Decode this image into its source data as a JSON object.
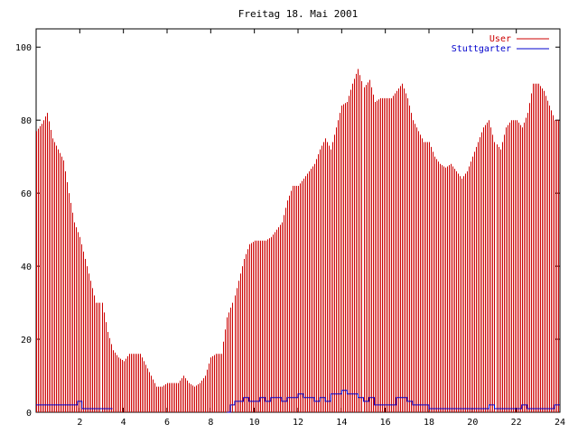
{
  "chart_data": {
    "type": "bar",
    "title": "Freitag 18. Mai 2001",
    "xlabel": "",
    "ylabel": "",
    "xlim": [
      0,
      24
    ],
    "ylim": [
      0,
      105
    ],
    "x_ticks": [
      2,
      4,
      6,
      8,
      10,
      12,
      14,
      16,
      18,
      20,
      22,
      24
    ],
    "y_ticks": [
      0,
      20,
      40,
      60,
      80,
      100
    ],
    "legend_position": "top-right",
    "series": [
      {
        "name": "User",
        "style": "impulses",
        "color": "#cc0000",
        "points": [
          [
            0.0,
            77
          ],
          [
            0.25,
            79
          ],
          [
            0.5,
            82
          ],
          [
            0.75,
            75
          ],
          [
            1.0,
            72
          ],
          [
            1.25,
            69
          ],
          [
            1.5,
            60
          ],
          [
            1.75,
            52
          ],
          [
            2.0,
            48
          ],
          [
            2.25,
            42
          ],
          [
            2.5,
            36
          ],
          [
            2.75,
            30
          ],
          [
            3.0,
            30
          ],
          [
            3.25,
            22
          ],
          [
            3.5,
            17
          ],
          [
            3.75,
            15
          ],
          [
            4.0,
            14
          ],
          [
            4.25,
            16
          ],
          [
            4.5,
            16
          ],
          [
            4.75,
            16
          ],
          [
            5.0,
            13
          ],
          [
            5.25,
            10
          ],
          [
            5.5,
            7
          ],
          [
            5.75,
            7
          ],
          [
            6.0,
            8
          ],
          [
            6.25,
            8
          ],
          [
            6.5,
            8
          ],
          [
            6.75,
            10
          ],
          [
            7.0,
            8
          ],
          [
            7.25,
            7
          ],
          [
            7.5,
            8
          ],
          [
            7.75,
            10
          ],
          [
            8.0,
            15
          ],
          [
            8.25,
            16
          ],
          [
            8.5,
            16
          ],
          [
            8.75,
            26
          ],
          [
            9.0,
            30
          ],
          [
            9.25,
            36
          ],
          [
            9.5,
            42
          ],
          [
            9.75,
            46
          ],
          [
            10.0,
            47
          ],
          [
            10.25,
            47
          ],
          [
            10.5,
            47
          ],
          [
            10.75,
            48
          ],
          [
            11.0,
            50
          ],
          [
            11.25,
            52
          ],
          [
            11.5,
            58
          ],
          [
            11.75,
            62
          ],
          [
            12.0,
            62
          ],
          [
            12.25,
            64
          ],
          [
            12.5,
            66
          ],
          [
            12.75,
            68
          ],
          [
            13.0,
            72
          ],
          [
            13.25,
            75
          ],
          [
            13.5,
            72
          ],
          [
            13.75,
            78
          ],
          [
            14.0,
            84
          ],
          [
            14.25,
            85
          ],
          [
            14.5,
            90
          ],
          [
            14.75,
            94
          ],
          [
            15.0,
            89
          ],
          [
            15.25,
            91
          ],
          [
            15.5,
            85
          ],
          [
            15.75,
            86
          ],
          [
            16.0,
            86
          ],
          [
            16.25,
            86
          ],
          [
            16.5,
            88
          ],
          [
            16.75,
            90
          ],
          [
            17.0,
            86
          ],
          [
            17.25,
            80
          ],
          [
            17.5,
            77
          ],
          [
            17.75,
            74
          ],
          [
            18.0,
            74
          ],
          [
            18.25,
            70
          ],
          [
            18.5,
            68
          ],
          [
            18.75,
            67
          ],
          [
            19.0,
            68
          ],
          [
            19.25,
            66
          ],
          [
            19.5,
            64
          ],
          [
            19.75,
            66
          ],
          [
            20.0,
            70
          ],
          [
            20.25,
            74
          ],
          [
            20.5,
            78
          ],
          [
            20.75,
            80
          ],
          [
            21.0,
            74
          ],
          [
            21.25,
            72
          ],
          [
            21.5,
            78
          ],
          [
            21.75,
            80
          ],
          [
            22.0,
            80
          ],
          [
            22.25,
            78
          ],
          [
            22.5,
            82
          ],
          [
            22.75,
            90
          ],
          [
            23.0,
            90
          ],
          [
            23.25,
            88
          ],
          [
            23.5,
            84
          ],
          [
            23.75,
            80
          ]
        ]
      },
      {
        "name": "Stuttgarter",
        "style": "steps",
        "color": "#0000cc",
        "points": [
          [
            0.0,
            2
          ],
          [
            1.75,
            2
          ],
          [
            1.9,
            3
          ],
          [
            2.1,
            1
          ],
          [
            3.5,
            1
          ],
          [
            3.5,
            null
          ],
          [
            8.75,
            null
          ],
          [
            8.75,
            0
          ],
          [
            8.9,
            2
          ],
          [
            9.1,
            3
          ],
          [
            9.5,
            4
          ],
          [
            9.75,
            3
          ],
          [
            10.0,
            3
          ],
          [
            10.25,
            4
          ],
          [
            10.5,
            3
          ],
          [
            10.75,
            4
          ],
          [
            11.0,
            4
          ],
          [
            11.25,
            3
          ],
          [
            11.5,
            4
          ],
          [
            11.75,
            4
          ],
          [
            12.0,
            5
          ],
          [
            12.25,
            4
          ],
          [
            12.5,
            4
          ],
          [
            12.75,
            3
          ],
          [
            13.0,
            4
          ],
          [
            13.25,
            3
          ],
          [
            13.5,
            5
          ],
          [
            13.75,
            5
          ],
          [
            14.0,
            6
          ],
          [
            14.25,
            5
          ],
          [
            14.5,
            5
          ],
          [
            14.75,
            4
          ],
          [
            15.0,
            3
          ],
          [
            15.25,
            4
          ],
          [
            15.5,
            2
          ],
          [
            15.75,
            2
          ],
          [
            16.0,
            2
          ],
          [
            16.25,
            2
          ],
          [
            16.5,
            4
          ],
          [
            16.75,
            4
          ],
          [
            17.0,
            3
          ],
          [
            17.25,
            2
          ],
          [
            17.5,
            2
          ],
          [
            17.75,
            2
          ],
          [
            18.0,
            1
          ],
          [
            18.5,
            1
          ],
          [
            19.0,
            1
          ],
          [
            19.5,
            1
          ],
          [
            20.0,
            1
          ],
          [
            20.5,
            1
          ],
          [
            20.75,
            2
          ],
          [
            21.0,
            1
          ],
          [
            21.5,
            1
          ],
          [
            22.0,
            1
          ],
          [
            22.25,
            2
          ],
          [
            22.5,
            1
          ],
          [
            23.0,
            1
          ],
          [
            23.5,
            1
          ],
          [
            23.75,
            2
          ],
          [
            24.0,
            2
          ]
        ]
      }
    ]
  }
}
